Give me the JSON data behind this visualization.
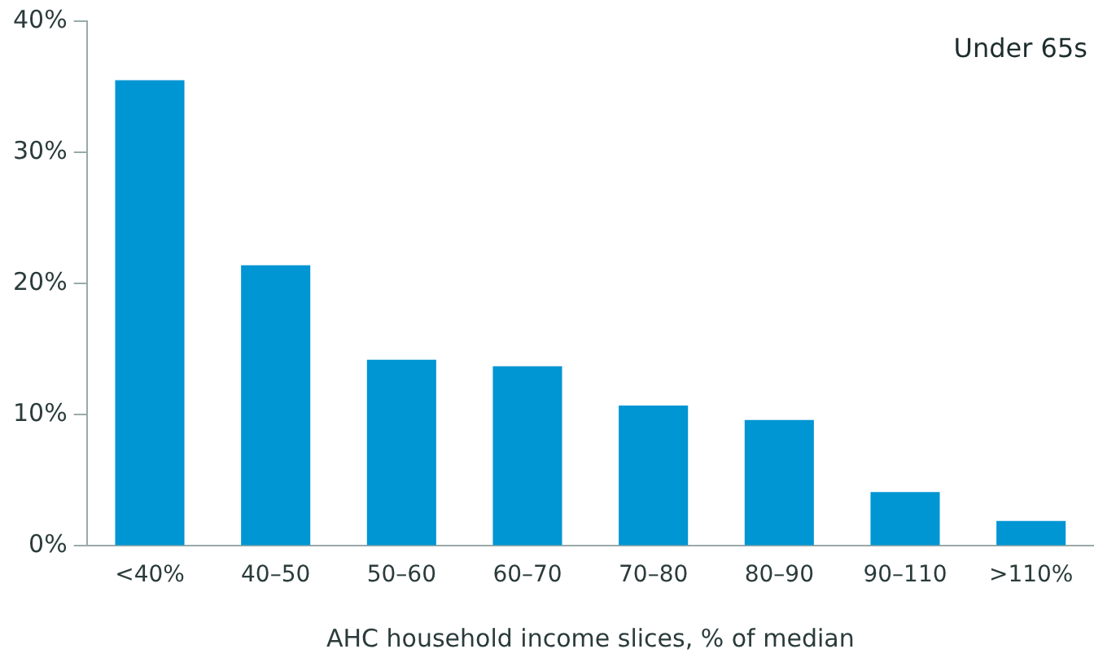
{
  "chart_data": {
    "type": "bar",
    "xlabel": "AHC household income slices, % of median",
    "annotations": [
      "Under 65s"
    ],
    "categories": [
      "<40%",
      "40–50",
      "50–60",
      "60–70",
      "70–80",
      "80–90",
      "90–110",
      ">110%"
    ],
    "values": [
      35.5,
      21.4,
      14.2,
      13.7,
      10.7,
      9.6,
      4.1,
      1.9
    ],
    "color": "#0095d3",
    "ylim": [
      0,
      40
    ],
    "yticks": [
      {
        "value": 0,
        "label": "0%"
      },
      {
        "value": 10,
        "label": "10%"
      },
      {
        "value": 20,
        "label": "20%"
      },
      {
        "value": 30,
        "label": "30%"
      },
      {
        "value": 40,
        "label": "40%"
      }
    ],
    "grid": false,
    "legend": false
  }
}
